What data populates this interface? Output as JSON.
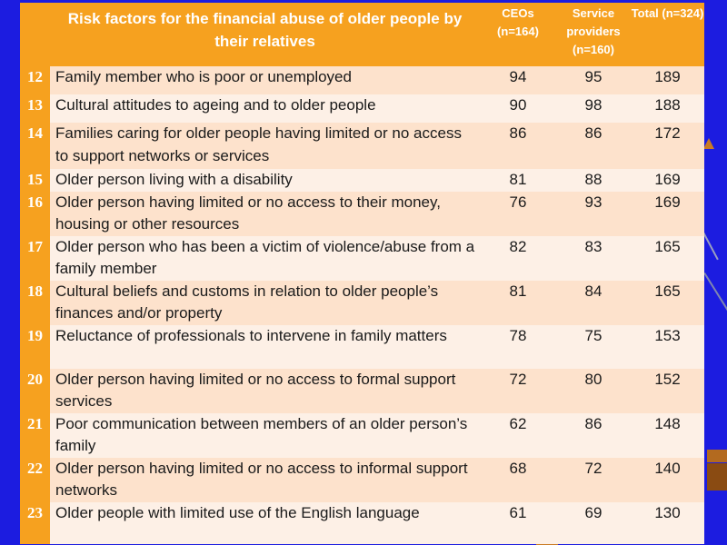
{
  "table": {
    "header": {
      "risk": "Risk factors for the financial abuse of older people by their relatives",
      "ceos": "CEOs (n=164)",
      "service": "Service providers (n=160)",
      "total": "Total (n=324)"
    },
    "rows": [
      {
        "num": "12",
        "text": "Family member who is poor or unemployed",
        "ceos": "94",
        "service": "95",
        "total": "189"
      },
      {
        "num": "13",
        "text": "Cultural attitudes to ageing and to older people",
        "ceos": "90",
        "service": "98",
        "total": "188"
      },
      {
        "num": "14",
        "text": "Families caring for older people having limited or no access to support networks or services",
        "ceos": "86",
        "service": "86",
        "total": "172"
      },
      {
        "num": "15",
        "text": "Older person living with a disability",
        "ceos": "81",
        "service": "88",
        "total": "169"
      },
      {
        "num": "16",
        "text": "Older person having limited or no access to their money, housing or other resources",
        "ceos": "76",
        "service": "93",
        "total": "169"
      },
      {
        "num": "17",
        "text": "Older person who has been a victim of violence/abuse from a family member",
        "ceos": "82",
        "service": "83",
        "total": "165"
      },
      {
        "num": "18",
        "text": "Cultural beliefs and customs in relation to older people’s finances and/or property",
        "ceos": "81",
        "service": "84",
        "total": "165"
      },
      {
        "num": "19",
        "text": "Reluctance of professionals to intervene in family matters",
        "ceos": "78",
        "service": "75",
        "total": "153"
      },
      {
        "num": "20",
        "text": "Older person having limited or no access to formal support services",
        "ceos": "72",
        "service": "80",
        "total": "152"
      },
      {
        "num": "21",
        "text": "Poor communication between members of an older person’s family",
        "ceos": "62",
        "service": "86",
        "total": "148"
      },
      {
        "num": "22",
        "text": "Older person having limited or no access to informal support networks",
        "ceos": "68",
        "service": "72",
        "total": "140"
      },
      {
        "num": "23",
        "text": "Older people with limited use of the English language",
        "ceos": "61",
        "service": "69",
        "total": "130"
      }
    ]
  },
  "colors": {
    "background": "#1c1ce0",
    "header": "#f6a11f",
    "row_odd": "#fde2cc",
    "row_even": "#fdf0e6"
  }
}
